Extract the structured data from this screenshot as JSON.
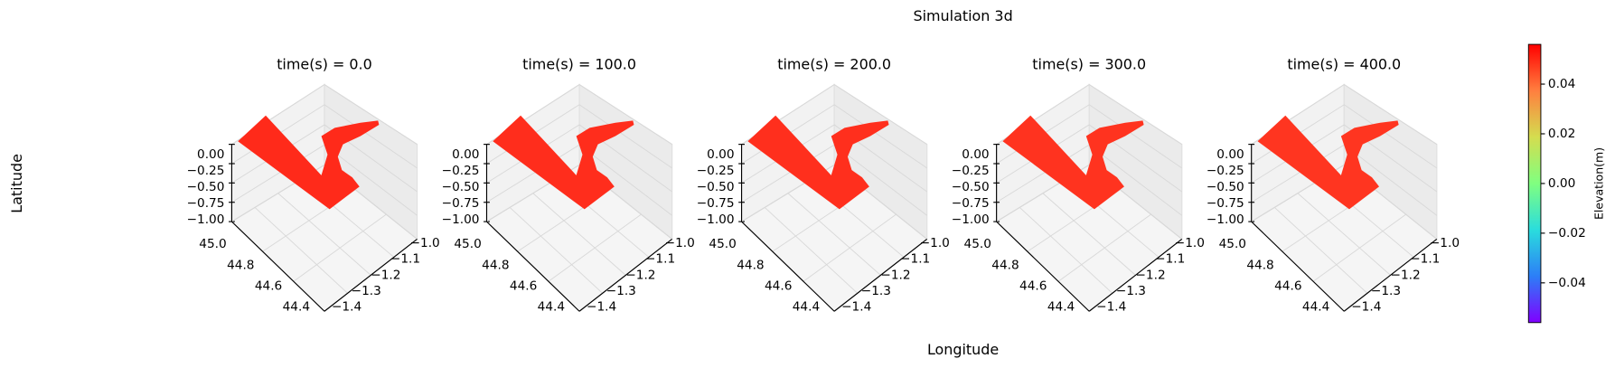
{
  "chart_data": {
    "type": "surface3d",
    "title": "Simulation 3d",
    "xlabel": "Longitude",
    "ylabel": "Latitude",
    "subplots": [
      {
        "title": "time(s) = 0.0",
        "color": "#ff2a1a"
      },
      {
        "title": "time(s) = 100.0",
        "color": "#ff2d1c"
      },
      {
        "title": "time(s) = 200.0",
        "color": "#ff2f1d"
      },
      {
        "title": "time(s) = 300.0",
        "color": "#ff331f"
      },
      {
        "title": "time(s) = 400.0",
        "color": "#ff3520"
      }
    ],
    "xticks": [
      {
        "value": -1.0,
        "label": "−1.0"
      },
      {
        "value": -1.1,
        "label": "−1.1"
      },
      {
        "value": -1.2,
        "label": "−1.2"
      },
      {
        "value": -1.3,
        "label": "−1.3"
      },
      {
        "value": -1.4,
        "label": "−1.4"
      }
    ],
    "yticks": [
      {
        "value": 45.0,
        "label": "45.0"
      },
      {
        "value": 44.8,
        "label": "44.8"
      },
      {
        "value": 44.6,
        "label": "44.6"
      },
      {
        "value": 44.4,
        "label": "44.4"
      }
    ],
    "zticks": [
      {
        "value": 0,
        "label": "0.00"
      },
      {
        "value": -0.25,
        "label": "−0.25"
      },
      {
        "value": -0.5,
        "label": "−0.50"
      },
      {
        "value": -0.75,
        "label": "−0.75"
      },
      {
        "value": -1.0,
        "label": "−1.00"
      }
    ],
    "colorbar": {
      "label": "Elevation(m)",
      "colormap": [
        "#8000ff",
        "#2c7ef7",
        "#2adddd",
        "#80ff80",
        "#d4dd4f",
        "#ff7f3f",
        "#ff0000"
      ],
      "clim": [
        -0.056,
        0.056
      ],
      "ticks": [
        {
          "value": 0.04,
          "label": "0.04"
        },
        {
          "value": 0.02,
          "label": "0.02"
        },
        {
          "value": 0,
          "label": "0.00"
        },
        {
          "value": -0.02,
          "label": "−0.02"
        },
        {
          "value": -0.04,
          "label": "−0.04"
        }
      ]
    }
  }
}
